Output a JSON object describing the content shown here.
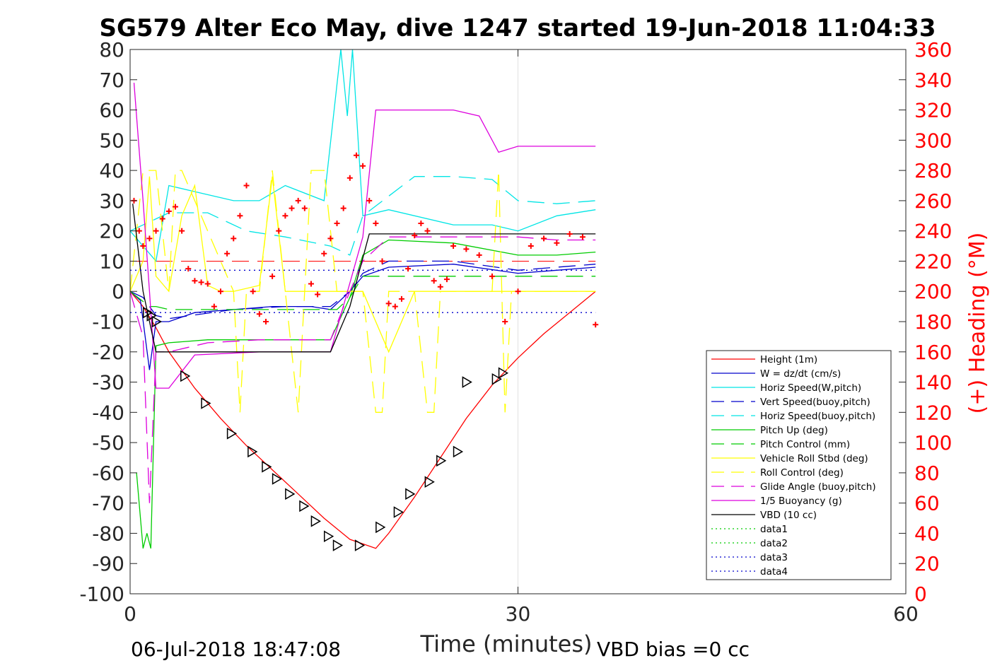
{
  "chart_data": {
    "type": "line",
    "title": "SG579 Alter Eco May, dive 1247 started 19-Jun-2018 11:04:33",
    "xlabel": "Time (minutes)",
    "ylabel_right": "(+) Heading (°M)",
    "xlim": [
      0,
      60
    ],
    "ylim": [
      -100,
      80
    ],
    "y2lim": [
      0,
      360
    ],
    "x_ticks": [
      "0",
      "30",
      "60"
    ],
    "y_ticks": [
      "80",
      "70",
      "60",
      "50",
      "40",
      "30",
      "20",
      "10",
      "0",
      "-10",
      "-20",
      "-30",
      "-40",
      "-50",
      "-60",
      "-70",
      "-80",
      "-90",
      "-100"
    ],
    "y2_ticks": [
      "360",
      "340",
      "320",
      "300",
      "280",
      "260",
      "240",
      "220",
      "200",
      "180",
      "160",
      "140",
      "120",
      "100",
      "80",
      "60",
      "40",
      "20",
      "0"
    ],
    "grid": "x at 30",
    "legend_position": "bottom-right",
    "footer_left": "06-Jul-2018 18:47:08",
    "footer_right": "VBD bias =0 cc",
    "series": [
      {
        "name": "Height (1m)",
        "color": "#ff0000",
        "style": "solid",
        "x": [
          0,
          1,
          2,
          3,
          5,
          7,
          9,
          11,
          13,
          15,
          17,
          19,
          20,
          22,
          24,
          26,
          28,
          30,
          32,
          34,
          36
        ],
        "y": [
          0,
          -5,
          -12,
          -20,
          -32,
          -42,
          -51,
          -59,
          -67,
          -75,
          -82,
          -85,
          -80,
          -68,
          -55,
          -42,
          -31,
          -22,
          -14,
          -7,
          0
        ]
      },
      {
        "name": "W = dz/dt (cm/s)",
        "color": "#0000cc",
        "style": "solid",
        "x": [
          0,
          0.8,
          1.5,
          2,
          3,
          5,
          8,
          11,
          14,
          15.5,
          17,
          18,
          20,
          25,
          30,
          33,
          36
        ],
        "y": [
          0,
          -3,
          -26,
          -10,
          -10,
          -7,
          -6,
          -5,
          -5,
          -6,
          0,
          5,
          8,
          9,
          6,
          7,
          8
        ]
      },
      {
        "name": "Horiz Speed(W,pitch)",
        "color": "#00e5e5",
        "style": "solid",
        "x": [
          0,
          1,
          2,
          3,
          5,
          8,
          10,
          12,
          15,
          16.3,
          16.8,
          17.2,
          18,
          20,
          25,
          28,
          30,
          33,
          36
        ],
        "y": [
          20,
          15,
          10,
          35,
          33,
          30,
          30,
          35,
          30,
          80,
          58,
          80,
          25,
          27,
          22,
          22,
          20,
          25,
          27
        ]
      },
      {
        "name": "Vert Speed(buoy,pitch)",
        "color": "#0000cc",
        "style": "dashed",
        "x": [
          0,
          1,
          2,
          3,
          8,
          12,
          15.5,
          17,
          18,
          20,
          25,
          30,
          33,
          36
        ],
        "y": [
          0,
          -2,
          -8,
          -9,
          -6,
          -5,
          -5,
          0,
          6,
          10,
          10,
          7,
          8,
          9
        ]
      },
      {
        "name": "Horiz Speed(buoy,pitch)",
        "color": "#00e5e5",
        "style": "dashed",
        "x": [
          0,
          2,
          3,
          6,
          9,
          12,
          15.5,
          17,
          18,
          22,
          25,
          28,
          30,
          33,
          36
        ],
        "y": [
          20,
          24,
          26,
          26,
          20,
          18,
          15,
          12,
          25,
          38,
          38,
          37,
          30,
          29,
          30
        ]
      },
      {
        "name": "Pitch Up (deg)",
        "color": "#00cc00",
        "style": "solid",
        "x": [
          0.5,
          1,
          1.3,
          1.6,
          2,
          3,
          6,
          10,
          15.5,
          17,
          18,
          20,
          25,
          30,
          33,
          36
        ],
        "y": [
          -60,
          -85,
          -80,
          -85,
          -18,
          -17,
          -16,
          -16,
          -16,
          -2,
          12,
          17,
          16,
          12,
          12,
          13
        ]
      },
      {
        "name": "Pitch Control (mm)",
        "color": "#00cc00",
        "style": "dashed",
        "x": [
          0,
          1.5,
          2,
          3,
          15.5,
          16,
          17,
          18,
          20,
          36
        ],
        "y": [
          0,
          -5,
          -5,
          -6,
          -6,
          -6,
          -2,
          5,
          5,
          5
        ]
      },
      {
        "name": "Vehicle Roll Stbd (deg)",
        "color": "#ffff00",
        "style": "solid",
        "x": [
          0,
          1,
          1.5,
          2,
          3,
          4,
          5,
          6,
          7,
          8,
          10,
          11,
          12,
          13,
          14,
          15,
          16,
          17,
          18,
          20,
          22,
          24,
          26,
          28,
          29,
          30,
          36
        ],
        "y": [
          0,
          10,
          38,
          5,
          0,
          25,
          35,
          2,
          0,
          0,
          2,
          38,
          0,
          0,
          0,
          0,
          0,
          0,
          0,
          -20,
          0,
          0,
          0,
          0,
          0,
          0,
          0
        ]
      },
      {
        "name": "Roll Control (deg)",
        "color": "#ffff00",
        "style": "dashed",
        "x": [
          0,
          1,
          1.5,
          2,
          3,
          3.5,
          4,
          8,
          8.5,
          9,
          10,
          11,
          12,
          13,
          14,
          15,
          16,
          17,
          18,
          19,
          19.5,
          20,
          22,
          23,
          23.5,
          24,
          28,
          28.5,
          29,
          29.5,
          36
        ],
        "y": [
          0,
          40,
          40,
          40,
          0,
          40,
          40,
          0,
          -40,
          0,
          0,
          40,
          0,
          -40,
          40,
          40,
          0,
          0,
          0,
          -40,
          -40,
          0,
          0,
          -40,
          -40,
          0,
          0,
          40,
          -40,
          0,
          0
        ]
      },
      {
        "name": "Glide Angle (buoy,pitch)",
        "color": "#dd00dd",
        "style": "dashed",
        "x": [
          0,
          1,
          1.5,
          2,
          3,
          6,
          10,
          15.5,
          17,
          18,
          20,
          25,
          30,
          33,
          36
        ],
        "y": [
          0,
          -15,
          -70,
          -20,
          -20,
          -17,
          -16,
          -16,
          0,
          10,
          18,
          18,
          18,
          17,
          17
        ]
      },
      {
        "name": "1/5 Buoyancy (g)",
        "color": "#dd00dd",
        "style": "solid",
        "x": [
          0.3,
          1,
          1.5,
          2,
          3,
          5,
          10,
          15.5,
          18,
          19,
          25,
          27,
          28.5,
          30,
          36
        ],
        "y": [
          69,
          30,
          0,
          -32,
          -32,
          -21,
          -20,
          -20,
          18,
          60,
          60,
          58,
          46,
          48,
          48
        ]
      },
      {
        "name": "VBD (10 cc)",
        "color": "#000000",
        "style": "solid",
        "x": [
          0.2,
          1,
          2,
          3,
          15.5,
          17,
          18.5,
          30,
          36
        ],
        "y": [
          29,
          0,
          -20,
          -20,
          -20,
          -5,
          19,
          19,
          19
        ]
      },
      {
        "name": "data1",
        "color": "#00cc00",
        "style": "dotted",
        "x": [],
        "y": []
      },
      {
        "name": "data2",
        "color": "#00cc00",
        "style": "dotted",
        "x": [],
        "y": []
      },
      {
        "name": "data3",
        "color": "#0000cc",
        "style": "dotted",
        "x": [
          0,
          36
        ],
        "y": [
          7,
          7
        ]
      },
      {
        "name": "data4",
        "color": "#0000cc",
        "style": "dotted",
        "x": [
          0,
          36
        ],
        "y": [
          -7,
          -7
        ]
      }
    ],
    "reference_lines": [
      {
        "color": "#ff0000",
        "style": "dashed",
        "y": 10,
        "x": [
          0,
          36
        ]
      }
    ],
    "heading_points": {
      "color": "#ff0000",
      "marker": "+",
      "x": [
        0.3,
        0.7,
        1,
        1.5,
        2,
        2.5,
        3,
        3.5,
        4,
        4.5,
        5,
        5.5,
        6,
        6.5,
        7,
        7.5,
        8,
        8.5,
        9,
        9.5,
        10,
        10.5,
        11,
        11.5,
        12,
        12.5,
        13,
        13.5,
        14,
        14.5,
        15,
        15.5,
        16,
        16.5,
        17,
        17.5,
        18,
        18.5,
        19,
        19.5,
        20,
        20.5,
        21,
        21.5,
        22,
        22.5,
        23,
        23.5,
        24,
        24.5,
        25,
        26,
        27,
        28,
        29,
        30,
        31,
        32,
        33,
        34,
        35,
        36
      ],
      "y": [
        260,
        240,
        230,
        235,
        240,
        248,
        253,
        256,
        240,
        215,
        207,
        206,
        205,
        190,
        200,
        225,
        235,
        250,
        270,
        200,
        185,
        180,
        210,
        240,
        250,
        255,
        260,
        255,
        205,
        198,
        225,
        235,
        245,
        255,
        275,
        290,
        283,
        260,
        245,
        220,
        192,
        190,
        195,
        215,
        237,
        245,
        240,
        207,
        203,
        208,
        230,
        228,
        224,
        210,
        180,
        200,
        230,
        235,
        232,
        238,
        236,
        178
      ]
    },
    "triangle_markers": {
      "color": "#000000",
      "x": [
        1.3,
        1.6,
        2,
        4.2,
        5.8,
        7.8,
        9.4,
        10.5,
        11.3,
        12.3,
        13.4,
        14.3,
        15.3,
        16,
        17.7,
        19.3,
        20.7,
        21.6,
        23.1,
        24,
        25.3,
        26,
        28.3,
        28.8
      ],
      "y": [
        -7,
        -8,
        -10,
        -28,
        -37,
        -47,
        -53,
        -58,
        -62,
        -67,
        -71,
        -76,
        -81,
        -84,
        -84,
        -78,
        -73,
        -67,
        -63,
        -56,
        -53,
        -30,
        -29,
        -27
      ]
    }
  }
}
